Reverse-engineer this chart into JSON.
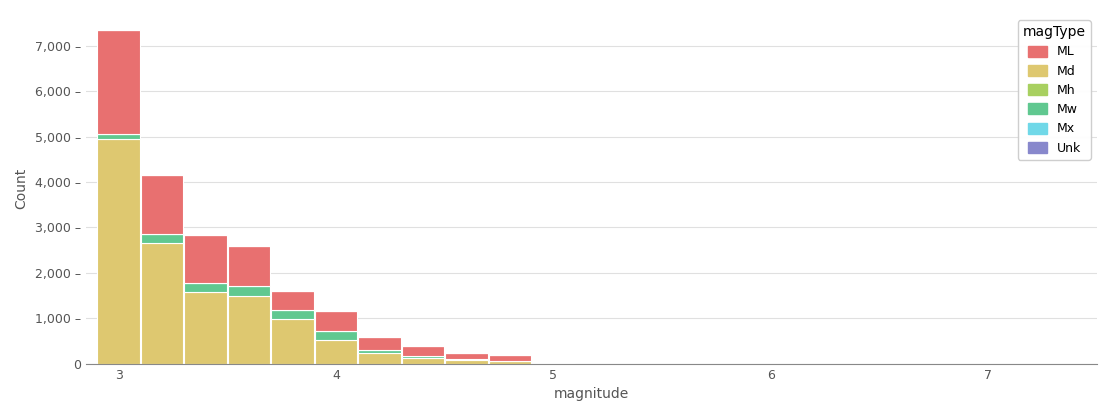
{
  "title": "",
  "xlabel": "magnitude",
  "ylabel": "Count",
  "legend_title": "magType",
  "legend_labels": [
    "Md",
    "Mw",
    "Mh",
    "ML",
    "Mx",
    "Unk"
  ],
  "colors": {
    "ML": "#E87070",
    "Md": "#DEC870",
    "Mh": "#A8D060",
    "Mw": "#60C890",
    "Mx": "#70D8E8",
    "Unk": "#8888CC"
  },
  "legend_order": [
    "ML",
    "Md",
    "Mh",
    "Mw",
    "Mx",
    "Unk"
  ],
  "stack_order": [
    "Md",
    "Mw",
    "Mh",
    "ML",
    "Mx",
    "Unk"
  ],
  "bin_edges": [
    2.9,
    3.1,
    3.3,
    3.5,
    3.7,
    3.9,
    4.1,
    4.3,
    4.5,
    4.7,
    4.9,
    5.1,
    5.3,
    5.5,
    5.7,
    5.9,
    6.1,
    6.3,
    6.5,
    6.7,
    6.9,
    7.1,
    7.3
  ],
  "data": {
    "ML": [
      2300,
      1300,
      1050,
      900,
      430,
      430,
      280,
      200,
      120,
      130,
      15,
      0,
      0,
      0,
      0,
      0,
      0,
      0,
      0,
      0,
      0,
      0
    ],
    "Md": [
      4950,
      2650,
      1580,
      1500,
      980,
      530,
      230,
      130,
      80,
      50,
      5,
      0,
      0,
      0,
      0,
      0,
      0,
      0,
      0,
      0,
      0,
      0
    ],
    "Mh": [
      0,
      0,
      0,
      0,
      0,
      0,
      0,
      0,
      0,
      0,
      0,
      0,
      0,
      0,
      0,
      0,
      0,
      0,
      0,
      0,
      0,
      0
    ],
    "Mw": [
      100,
      200,
      200,
      200,
      200,
      200,
      80,
      50,
      30,
      20,
      5,
      0,
      0,
      0,
      0,
      0,
      0,
      0,
      0,
      0,
      0,
      0
    ],
    "Mx": [
      0,
      0,
      0,
      0,
      0,
      0,
      0,
      0,
      0,
      0,
      0,
      0,
      0,
      0,
      0,
      0,
      0,
      0,
      0,
      0,
      0,
      0
    ],
    "Unk": [
      0,
      0,
      0,
      0,
      0,
      0,
      0,
      0,
      0,
      0,
      0,
      0,
      0,
      0,
      0,
      0,
      0,
      0,
      0,
      0,
      0,
      0
    ]
  },
  "ylim": [
    0,
    7700
  ],
  "xlim": [
    2.85,
    7.5
  ],
  "yticks": [
    0,
    1000,
    2000,
    3000,
    4000,
    5000,
    6000,
    7000
  ],
  "xticks": [
    3,
    4,
    5,
    6,
    7
  ],
  "background_color": "#FFFFFF",
  "edge_color": "white"
}
